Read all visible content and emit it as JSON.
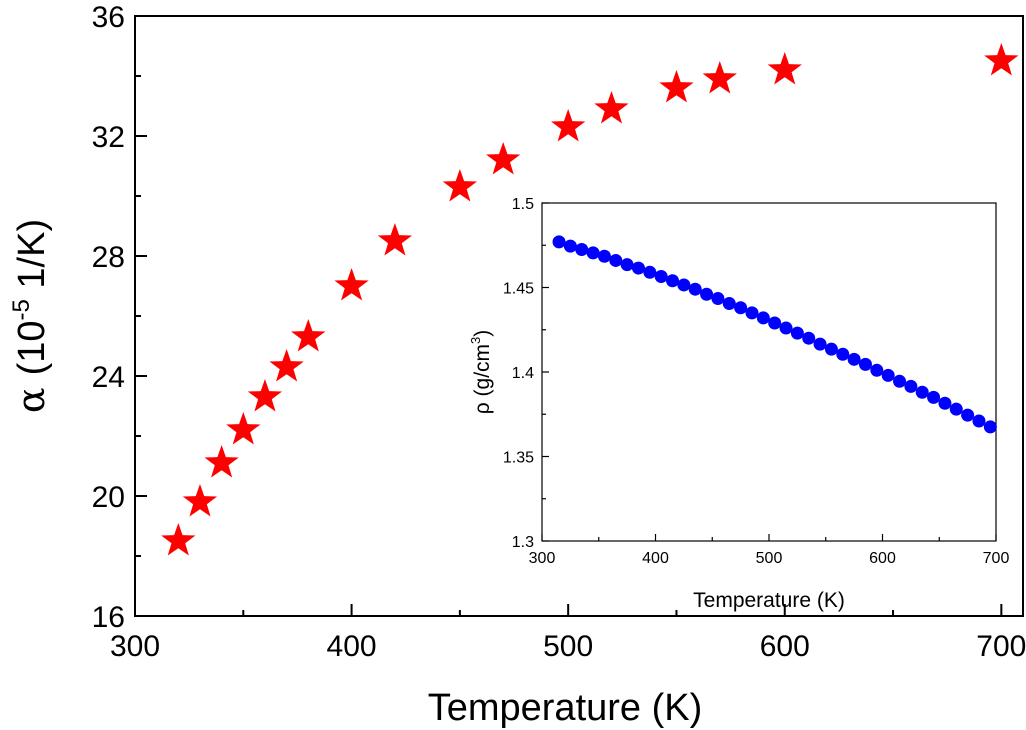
{
  "chart_data": [
    {
      "type": "scatter",
      "marker": "star",
      "color": "#ff0000",
      "xlabel": "Temperature (K)",
      "ylabel": {
        "symbol": "α",
        "prefix": "(10",
        "exponent": "-5",
        "suffix": " 1/K)"
      },
      "xlim": [
        300,
        710
      ],
      "ylim": [
        16,
        36
      ],
      "xticks": [
        "300",
        "400",
        "500",
        "600",
        "700"
      ],
      "yticks": [
        "16",
        "20",
        "24",
        "28",
        "32",
        "36"
      ],
      "points": [
        {
          "x": 320,
          "y": 18.5
        },
        {
          "x": 330,
          "y": 19.8
        },
        {
          "x": 340,
          "y": 21.1
        },
        {
          "x": 350,
          "y": 22.2
        },
        {
          "x": 360,
          "y": 23.3
        },
        {
          "x": 370,
          "y": 24.3
        },
        {
          "x": 380,
          "y": 25.3
        },
        {
          "x": 400,
          "y": 27.0
        },
        {
          "x": 420,
          "y": 28.5
        },
        {
          "x": 450,
          "y": 30.3
        },
        {
          "x": 470,
          "y": 31.2
        },
        {
          "x": 500,
          "y": 32.3
        },
        {
          "x": 520,
          "y": 32.9
        },
        {
          "x": 550,
          "y": 33.6
        },
        {
          "x": 570,
          "y": 33.9
        },
        {
          "x": 600,
          "y": 34.2
        },
        {
          "x": 700,
          "y": 34.5
        }
      ]
    },
    {
      "type": "scatter",
      "marker": "circle",
      "color": "#0000ff",
      "inset": true,
      "xlabel": "Temperature (K)",
      "ylabel": {
        "prefix": "ρ (g/cm",
        "exponent": "3",
        "suffix": ")"
      },
      "xlim": [
        300,
        700
      ],
      "ylim": [
        1.3,
        1.5
      ],
      "xticks": [
        "300",
        "400",
        "500",
        "600",
        "700"
      ],
      "yticks": [
        "1.3",
        "1.35",
        "1.4",
        "1.45",
        "1.5"
      ],
      "points": [
        {
          "x": 315,
          "y": 1.477
        },
        {
          "x": 325,
          "y": 1.4745
        },
        {
          "x": 335,
          "y": 1.4725
        },
        {
          "x": 345,
          "y": 1.4705
        },
        {
          "x": 355,
          "y": 1.4685
        },
        {
          "x": 365,
          "y": 1.466
        },
        {
          "x": 375,
          "y": 1.4635
        },
        {
          "x": 385,
          "y": 1.4615
        },
        {
          "x": 395,
          "y": 1.459
        },
        {
          "x": 405,
          "y": 1.4565
        },
        {
          "x": 415,
          "y": 1.454
        },
        {
          "x": 425,
          "y": 1.4515
        },
        {
          "x": 435,
          "y": 1.449
        },
        {
          "x": 445,
          "y": 1.446
        },
        {
          "x": 455,
          "y": 1.4435
        },
        {
          "x": 465,
          "y": 1.4405
        },
        {
          "x": 475,
          "y": 1.438
        },
        {
          "x": 485,
          "y": 1.435
        },
        {
          "x": 495,
          "y": 1.432
        },
        {
          "x": 505,
          "y": 1.429
        },
        {
          "x": 515,
          "y": 1.426
        },
        {
          "x": 525,
          "y": 1.423
        },
        {
          "x": 535,
          "y": 1.42
        },
        {
          "x": 545,
          "y": 1.4165
        },
        {
          "x": 555,
          "y": 1.4135
        },
        {
          "x": 565,
          "y": 1.4105
        },
        {
          "x": 575,
          "y": 1.4075
        },
        {
          "x": 585,
          "y": 1.4045
        },
        {
          "x": 595,
          "y": 1.401
        },
        {
          "x": 605,
          "y": 1.398
        },
        {
          "x": 615,
          "y": 1.3945
        },
        {
          "x": 625,
          "y": 1.3915
        },
        {
          "x": 635,
          "y": 1.388
        },
        {
          "x": 645,
          "y": 1.385
        },
        {
          "x": 655,
          "y": 1.3815
        },
        {
          "x": 665,
          "y": 1.378
        },
        {
          "x": 675,
          "y": 1.3745
        },
        {
          "x": 685,
          "y": 1.371
        },
        {
          "x": 695,
          "y": 1.3675
        }
      ]
    }
  ]
}
